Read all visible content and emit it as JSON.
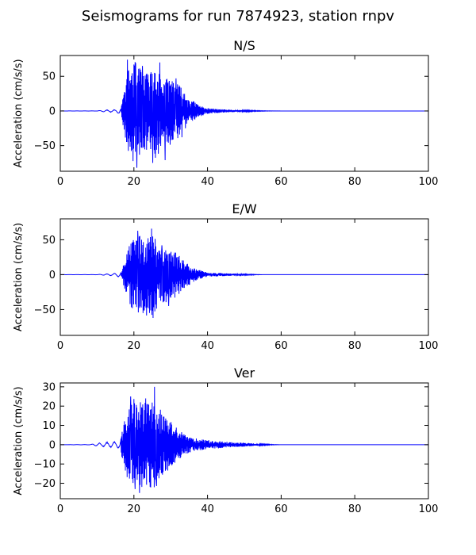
{
  "chart_data": {
    "type": "line",
    "suptitle": "Seismograms for run 7874923, station rnpv",
    "panels": [
      {
        "title": "N/S",
        "ylabel": "Acceleration (cm/s/s)",
        "xlim": [
          0,
          100
        ],
        "ylim": [
          -87,
          80
        ],
        "xticks": [
          0,
          20,
          40,
          60,
          80,
          100
        ],
        "yticks": [
          -50,
          0,
          50
        ],
        "color": "#0000ff",
        "envelope": {
          "x": [
            0,
            10,
            12,
            15,
            16.5,
            17.5,
            18.5,
            20,
            22,
            24,
            26,
            28,
            30,
            32,
            34,
            36,
            38,
            40,
            45,
            50,
            55,
            60,
            100
          ],
          "amp": [
            0,
            0.2,
            1.5,
            2,
            6,
            35,
            60,
            75,
            60,
            55,
            70,
            45,
            50,
            40,
            25,
            15,
            8,
            4,
            2,
            1,
            0.3,
            0,
            0
          ]
        },
        "peaks": [
          {
            "x": 18.2,
            "y": 74
          },
          {
            "x": 20.8,
            "y": -82
          },
          {
            "x": 22.3,
            "y": 65
          },
          {
            "x": 25.1,
            "y": -75
          },
          {
            "x": 27.0,
            "y": 70
          },
          {
            "x": 28.5,
            "y": -71
          },
          {
            "x": 31.4,
            "y": 47
          },
          {
            "x": 33.0,
            "y": -38
          }
        ],
        "seed": 11
      },
      {
        "title": "E/W",
        "ylabel": "Acceleration (cm/s/s)",
        "xlim": [
          0,
          100
        ],
        "ylim": [
          -87,
          80
        ],
        "xticks": [
          0,
          20,
          40,
          60,
          80,
          100
        ],
        "yticks": [
          -50,
          0,
          50
        ],
        "color": "#0000ff",
        "envelope": {
          "x": [
            0,
            10,
            12,
            15,
            16.5,
            17.5,
            19,
            21,
            23,
            25,
            27,
            29,
            31,
            33,
            35,
            37,
            40,
            45,
            50,
            55,
            100
          ],
          "amp": [
            0,
            0.2,
            1,
            2,
            5,
            25,
            45,
            60,
            58,
            60,
            45,
            40,
            35,
            25,
            15,
            8,
            3,
            2,
            0.8,
            0,
            0
          ]
        },
        "peaks": [
          {
            "x": 21.0,
            "y": 63
          },
          {
            "x": 22.5,
            "y": -55
          },
          {
            "x": 24.8,
            "y": 66
          },
          {
            "x": 25.2,
            "y": -62
          },
          {
            "x": 27.6,
            "y": 42
          },
          {
            "x": 29.4,
            "y": -45
          }
        ],
        "seed": 23
      },
      {
        "title": "Ver",
        "ylabel": "Acceleration (cm/s/s)",
        "xlim": [
          0,
          100
        ],
        "ylim": [
          -28,
          32
        ],
        "xticks": [
          0,
          20,
          40,
          60,
          80,
          100
        ],
        "yticks": [
          -20,
          -10,
          0,
          10,
          20,
          30
        ],
        "color": "#0000ff",
        "envelope": {
          "x": [
            0,
            8,
            10,
            12,
            14,
            16,
            17,
            18,
            20,
            22,
            24,
            26,
            28,
            30,
            32,
            34,
            36,
            38,
            40,
            45,
            50,
            55,
            60,
            100
          ],
          "amp": [
            0,
            0.1,
            0.8,
            1.2,
            1.6,
            2,
            8,
            18,
            24,
            22,
            23,
            22,
            16,
            12,
            8,
            5,
            3.5,
            3,
            2.5,
            1.5,
            1,
            0.3,
            0,
            0
          ]
        },
        "peaks": [
          {
            "x": 19.1,
            "y": 25
          },
          {
            "x": 20.3,
            "y": -23
          },
          {
            "x": 21.5,
            "y": -25
          },
          {
            "x": 23.2,
            "y": 24
          },
          {
            "x": 25.6,
            "y": 30
          },
          {
            "x": 26.1,
            "y": -20
          }
        ],
        "seed": 37
      }
    ]
  }
}
